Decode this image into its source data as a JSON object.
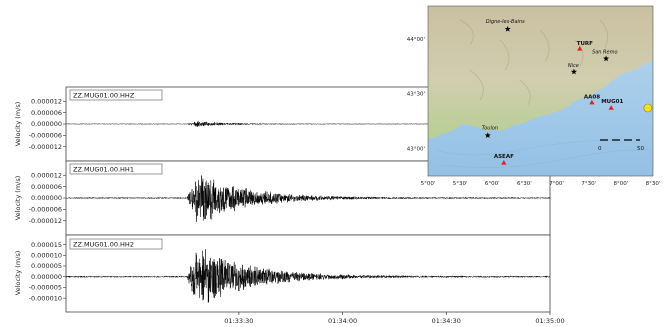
{
  "chart_data": [
    {
      "type": "line",
      "channel": "ZZ.MUG01.00.HHZ",
      "ylabel": "Velocity (m/s)",
      "yticks": [
        "0.000012",
        "0.000006",
        "0.000000",
        "-0.000006",
        "-0.000012"
      ],
      "ytick_values": [
        1.2e-05,
        6e-06,
        0,
        -6e-06,
        -1.2e-05
      ],
      "ylim": [
        -1.9e-05,
        1.9e-05
      ],
      "onset": "01:33:15",
      "peak_amplitude": 1.4e-06,
      "decay_seconds": 18,
      "noise_level": 2e-07
    },
    {
      "type": "line",
      "channel": "ZZ.MUG01.00.HH1",
      "ylabel": "Velocity (m/s)",
      "yticks": [
        "0.000012",
        "0.000006",
        "0.000000",
        "-0.000006",
        "-0.000012"
      ],
      "ytick_values": [
        1.2e-05,
        6e-06,
        0,
        -6e-06,
        -1.2e-05
      ],
      "ylim": [
        -1.9e-05,
        1.9e-05
      ],
      "onset": "01:33:15",
      "peak_amplitude": 1.6e-05,
      "decay_seconds": 28,
      "noise_level": 4e-07
    },
    {
      "type": "line",
      "channel": "ZZ.MUG01.00.HH2",
      "ylabel": "Velocity (m/s)",
      "yticks": [
        "0.000015",
        "0.000010",
        "0.000005",
        "0.000000",
        "-0.000005",
        "-0.000010"
      ],
      "ytick_values": [
        1.5e-05,
        1e-05,
        5e-06,
        0,
        -5e-06,
        -1e-05
      ],
      "ylim": [
        -1.6e-05,
        1.9e-05
      ],
      "onset": "01:33:15",
      "peak_amplitude": 1.7e-05,
      "decay_seconds": 30,
      "noise_level": 4e-07
    }
  ],
  "x_axis": {
    "range": [
      "01:32:40",
      "01:35:00"
    ],
    "ticks": [
      "01:33:30",
      "01:34:00",
      "01:34:30",
      "01:35:00"
    ]
  },
  "map": {
    "lon_ticks": [
      "5°00'",
      "5°30'",
      "6°00'",
      "6°30'",
      "7°00'",
      "7°30'",
      "8°00'",
      "8°30'"
    ],
    "lat_ticks": [
      "44°00'",
      "43°30'",
      "43°00'"
    ],
    "lon_range": [
      5.0,
      8.5
    ],
    "lat_range": [
      42.75,
      44.3
    ],
    "scale_labels": [
      "0",
      "50"
    ],
    "colors": {
      "land": "#c9c3a6",
      "sea": "#a9cde9",
      "station": "#e2231a",
      "city": "#000000",
      "event": "#ffe01a"
    },
    "cities": [
      {
        "name": "Digne-les-Bains",
        "lon": 6.24,
        "lat": 44.09
      },
      {
        "name": "Nice",
        "lon": 7.27,
        "lat": 43.7
      },
      {
        "name": "San Remo",
        "lon": 7.77,
        "lat": 43.82
      },
      {
        "name": "Toulon",
        "lon": 5.93,
        "lat": 43.12
      }
    ],
    "stations": [
      {
        "name": "TURF",
        "lon": 7.36,
        "lat": 43.91
      },
      {
        "name": "AA08",
        "lon": 7.55,
        "lat": 43.42
      },
      {
        "name": "MUG01",
        "lon": 7.85,
        "lat": 43.37
      },
      {
        "name": "ASEAF",
        "lon": 6.18,
        "lat": 42.87
      }
    ],
    "event": {
      "lon": 8.42,
      "lat": 43.37
    }
  }
}
